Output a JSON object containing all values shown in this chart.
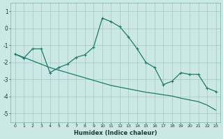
{
  "xlabel": "Humidex (Indice chaleur)",
  "background_color": "#cce8e4",
  "grid_color": "#aaccc8",
  "line_color": "#1a7a6e",
  "x_zigzag": [
    0,
    1,
    2,
    3,
    4,
    5,
    6,
    7,
    8,
    9,
    10,
    11,
    12,
    13,
    14,
    15,
    16,
    17,
    18,
    19,
    20,
    21,
    22,
    23
  ],
  "y_zigzag": [
    -1.5,
    -1.75,
    -1.2,
    -1.2,
    -2.6,
    -2.3,
    -2.1,
    -1.7,
    -1.55,
    -1.1,
    0.6,
    0.4,
    0.1,
    -0.5,
    -1.2,
    -2.0,
    -2.3,
    -3.3,
    -3.1,
    -2.6,
    -2.7,
    -2.7,
    -3.5,
    -3.7
  ],
  "x_line": [
    0,
    1,
    2,
    3,
    4,
    5,
    6,
    7,
    8,
    9,
    10,
    11,
    12,
    13,
    14,
    15,
    16,
    17,
    18,
    19,
    20,
    21,
    22,
    23
  ],
  "y_line": [
    -1.5,
    -1.7,
    -1.9,
    -2.1,
    -2.3,
    -2.45,
    -2.6,
    -2.75,
    -2.9,
    -3.05,
    -3.2,
    -3.35,
    -3.45,
    -3.55,
    -3.65,
    -3.75,
    -3.82,
    -3.9,
    -3.97,
    -4.1,
    -4.2,
    -4.3,
    -4.5,
    -4.8
  ],
  "ylim": [
    -5.5,
    1.5
  ],
  "xlim": [
    -0.5,
    23.5
  ],
  "yticks": [
    -5,
    -4,
    -3,
    -2,
    -1,
    0,
    1
  ],
  "ytick_labels": [
    "-5",
    "-4",
    "-3",
    "-2",
    "-1",
    "0",
    "1"
  ]
}
